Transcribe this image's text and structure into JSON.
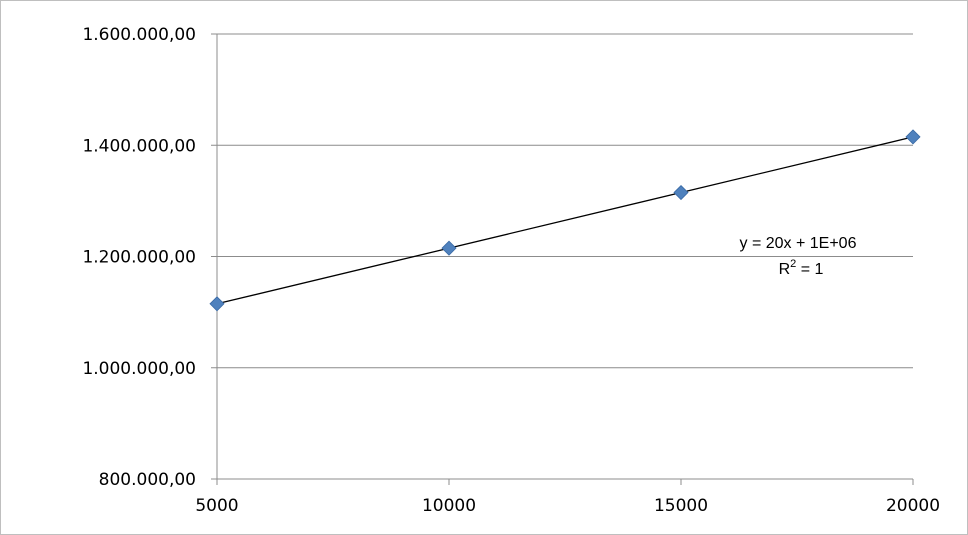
{
  "chart_data": {
    "type": "scatter",
    "title": "",
    "xlabel": "",
    "ylabel": "",
    "x": [
      5000,
      10000,
      15000,
      20000
    ],
    "series": [
      {
        "values": [
          1115000,
          1215000,
          1315000,
          1415000
        ]
      }
    ],
    "xlim": [
      5000,
      20000
    ],
    "ylim": [
      800000,
      1600000
    ],
    "x_ticks": [
      5000,
      10000,
      15000,
      20000
    ],
    "x_tick_labels": [
      "5000",
      "10000",
      "15000",
      "20000"
    ],
    "y_ticks": [
      800000,
      1000000,
      1200000,
      1400000,
      1600000
    ],
    "y_tick_labels": [
      "800.000,00",
      "1.000.000,00",
      "1.200.000,00",
      "1.400.000,00",
      "1.600.000,00"
    ],
    "grid": "horizontal",
    "marker": "diamond",
    "marker_color": "#4F81BD",
    "trendline": {
      "type": "linear",
      "color": "#000000",
      "equation": "y = 20x + 1E+06",
      "r2_prefix": "R",
      "r2_sup": "2",
      "r2_suffix": " = 1"
    }
  }
}
